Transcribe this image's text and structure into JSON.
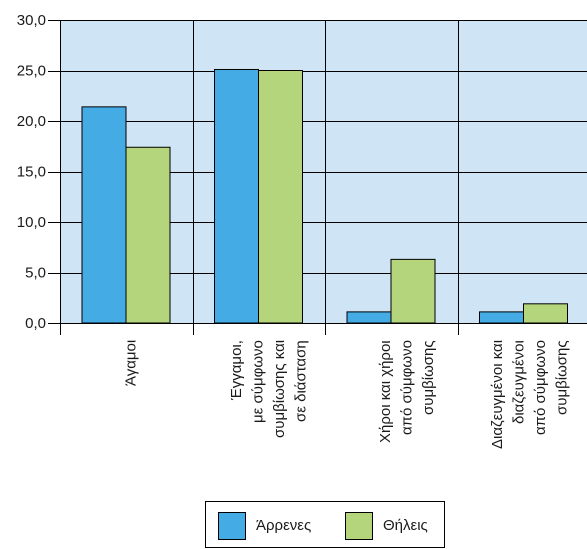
{
  "chart_data": {
    "type": "bar",
    "categories": [
      "Άγαμοι",
      "Έγγαμοι,\nμε σύμφωνο\nσυμβίωσης και\nσε διάσταση",
      "Χήροι και χήροι\nαπό σύμφωνο\nσυμβίωσης",
      "Διαζευγμένοι και\nδιαζευγμένοι\nαπό σύμφωνο\nσυμβίωσης"
    ],
    "series": [
      {
        "name": "Άρρενες",
        "color": "#45abe4",
        "values": [
          21.4,
          25.1,
          1.1,
          1.1
        ]
      },
      {
        "name": "Θήλεις",
        "color": "#b5d57d",
        "values": [
          17.4,
          25.0,
          6.3,
          1.9
        ]
      }
    ],
    "ylim": [
      0,
      30
    ],
    "yticks": [
      0,
      5,
      10,
      15,
      20,
      25,
      30
    ],
    "ytick_labels": [
      "0,0",
      "5,0",
      "10,0",
      "15,0",
      "20,0",
      "25,0",
      "30,0"
    ],
    "grid": true,
    "legend_position": "bottom",
    "plot_background": "#cfe4f5"
  }
}
